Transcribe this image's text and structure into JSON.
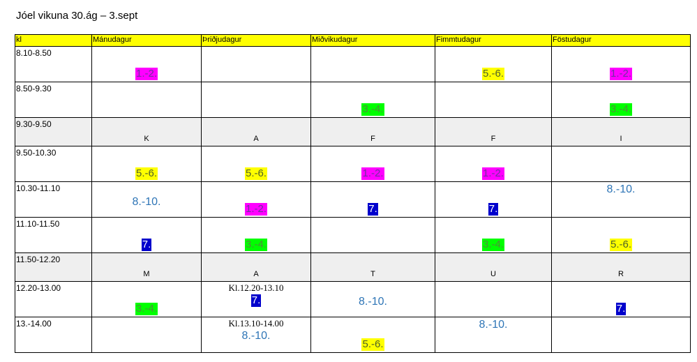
{
  "title": "Jóel vikuna 30.ág – 3.sept",
  "headers": [
    "kl",
    "Mánudagur",
    "Þriðjudagur",
    "Miðvikudagur",
    "Fimmtudagur",
    "Föstudagur"
  ],
  "rows": [
    {
      "time": "8.10-8.50",
      "cells": [
        {
          "text": "1.-2.",
          "style": "magenta"
        },
        {
          "text": ""
        },
        {
          "text": ""
        },
        {
          "text": "5.-6.",
          "style": "yellow"
        },
        {
          "text": "1.-2.",
          "style": "magenta"
        }
      ]
    },
    {
      "time": "8.50-9.30",
      "cells": [
        {
          "text": ""
        },
        {
          "text": ""
        },
        {
          "text": "3.-4.",
          "style": "green"
        },
        {
          "text": ""
        },
        {
          "text": "3.-4.",
          "style": "green"
        }
      ]
    },
    {
      "time": "9.30-9.50",
      "break": true,
      "letters": [
        "K",
        "A",
        "F",
        "F",
        "I"
      ]
    },
    {
      "time": "9.50-10.30",
      "cells": [
        {
          "text": "5.-6.",
          "style": "yellow"
        },
        {
          "text": "5.-6.",
          "style": "yellow"
        },
        {
          "text": "1.-2.",
          "style": "magenta"
        },
        {
          "text": "1.-2.",
          "style": "magenta"
        },
        {
          "text": ""
        }
      ]
    },
    {
      "time": "10.30-11.10",
      "cells": [
        {
          "text": "8.-10.",
          "style": "plain"
        },
        {
          "text": "1.-2.",
          "style": "magenta"
        },
        {
          "text": "7.",
          "style": "blue"
        },
        {
          "text": "7.",
          "style": "blue"
        },
        {
          "text": "8.-10.",
          "style": "plain",
          "pos": "top"
        }
      ]
    },
    {
      "time": "11.10-11.50",
      "cells": [
        {
          "text": "7.",
          "style": "blue"
        },
        {
          "text": "3.-4.",
          "style": "green"
        },
        {
          "text": ""
        },
        {
          "text": "3.-4.",
          "style": "green"
        },
        {
          "text": "5.-6.",
          "style": "yellow"
        }
      ]
    },
    {
      "time": "11.50-12.20",
      "break": true,
      "letters": [
        "M",
        "A",
        "T",
        "U",
        "R"
      ]
    },
    {
      "time": "12.20-13.00",
      "cells": [
        {
          "text": "3.-4.",
          "style": "green"
        },
        {
          "text": "7.",
          "style": "blue",
          "note": "Kl.12.20-13.10"
        },
        {
          "text": "8.-10.",
          "style": "plain"
        },
        {
          "text": ""
        },
        {
          "text": "7.",
          "style": "blue"
        }
      ]
    },
    {
      "time": "13.-14.00",
      "cells": [
        {
          "text": ""
        },
        {
          "text": "8.-10.",
          "style": "plain",
          "note": "Kl.13.10-14.00"
        },
        {
          "text": "5.-6.",
          "style": "yellow"
        },
        {
          "text": "8.-10.",
          "style": "plain",
          "pos": "top"
        },
        {
          "text": ""
        }
      ]
    }
  ],
  "colors": {
    "header_bg": "#ffff00",
    "magenta": "#ff00ff",
    "yellow": "#ffff00",
    "green": "#00ff00",
    "blue": "#0000cc",
    "break_bg": "#efefef"
  }
}
